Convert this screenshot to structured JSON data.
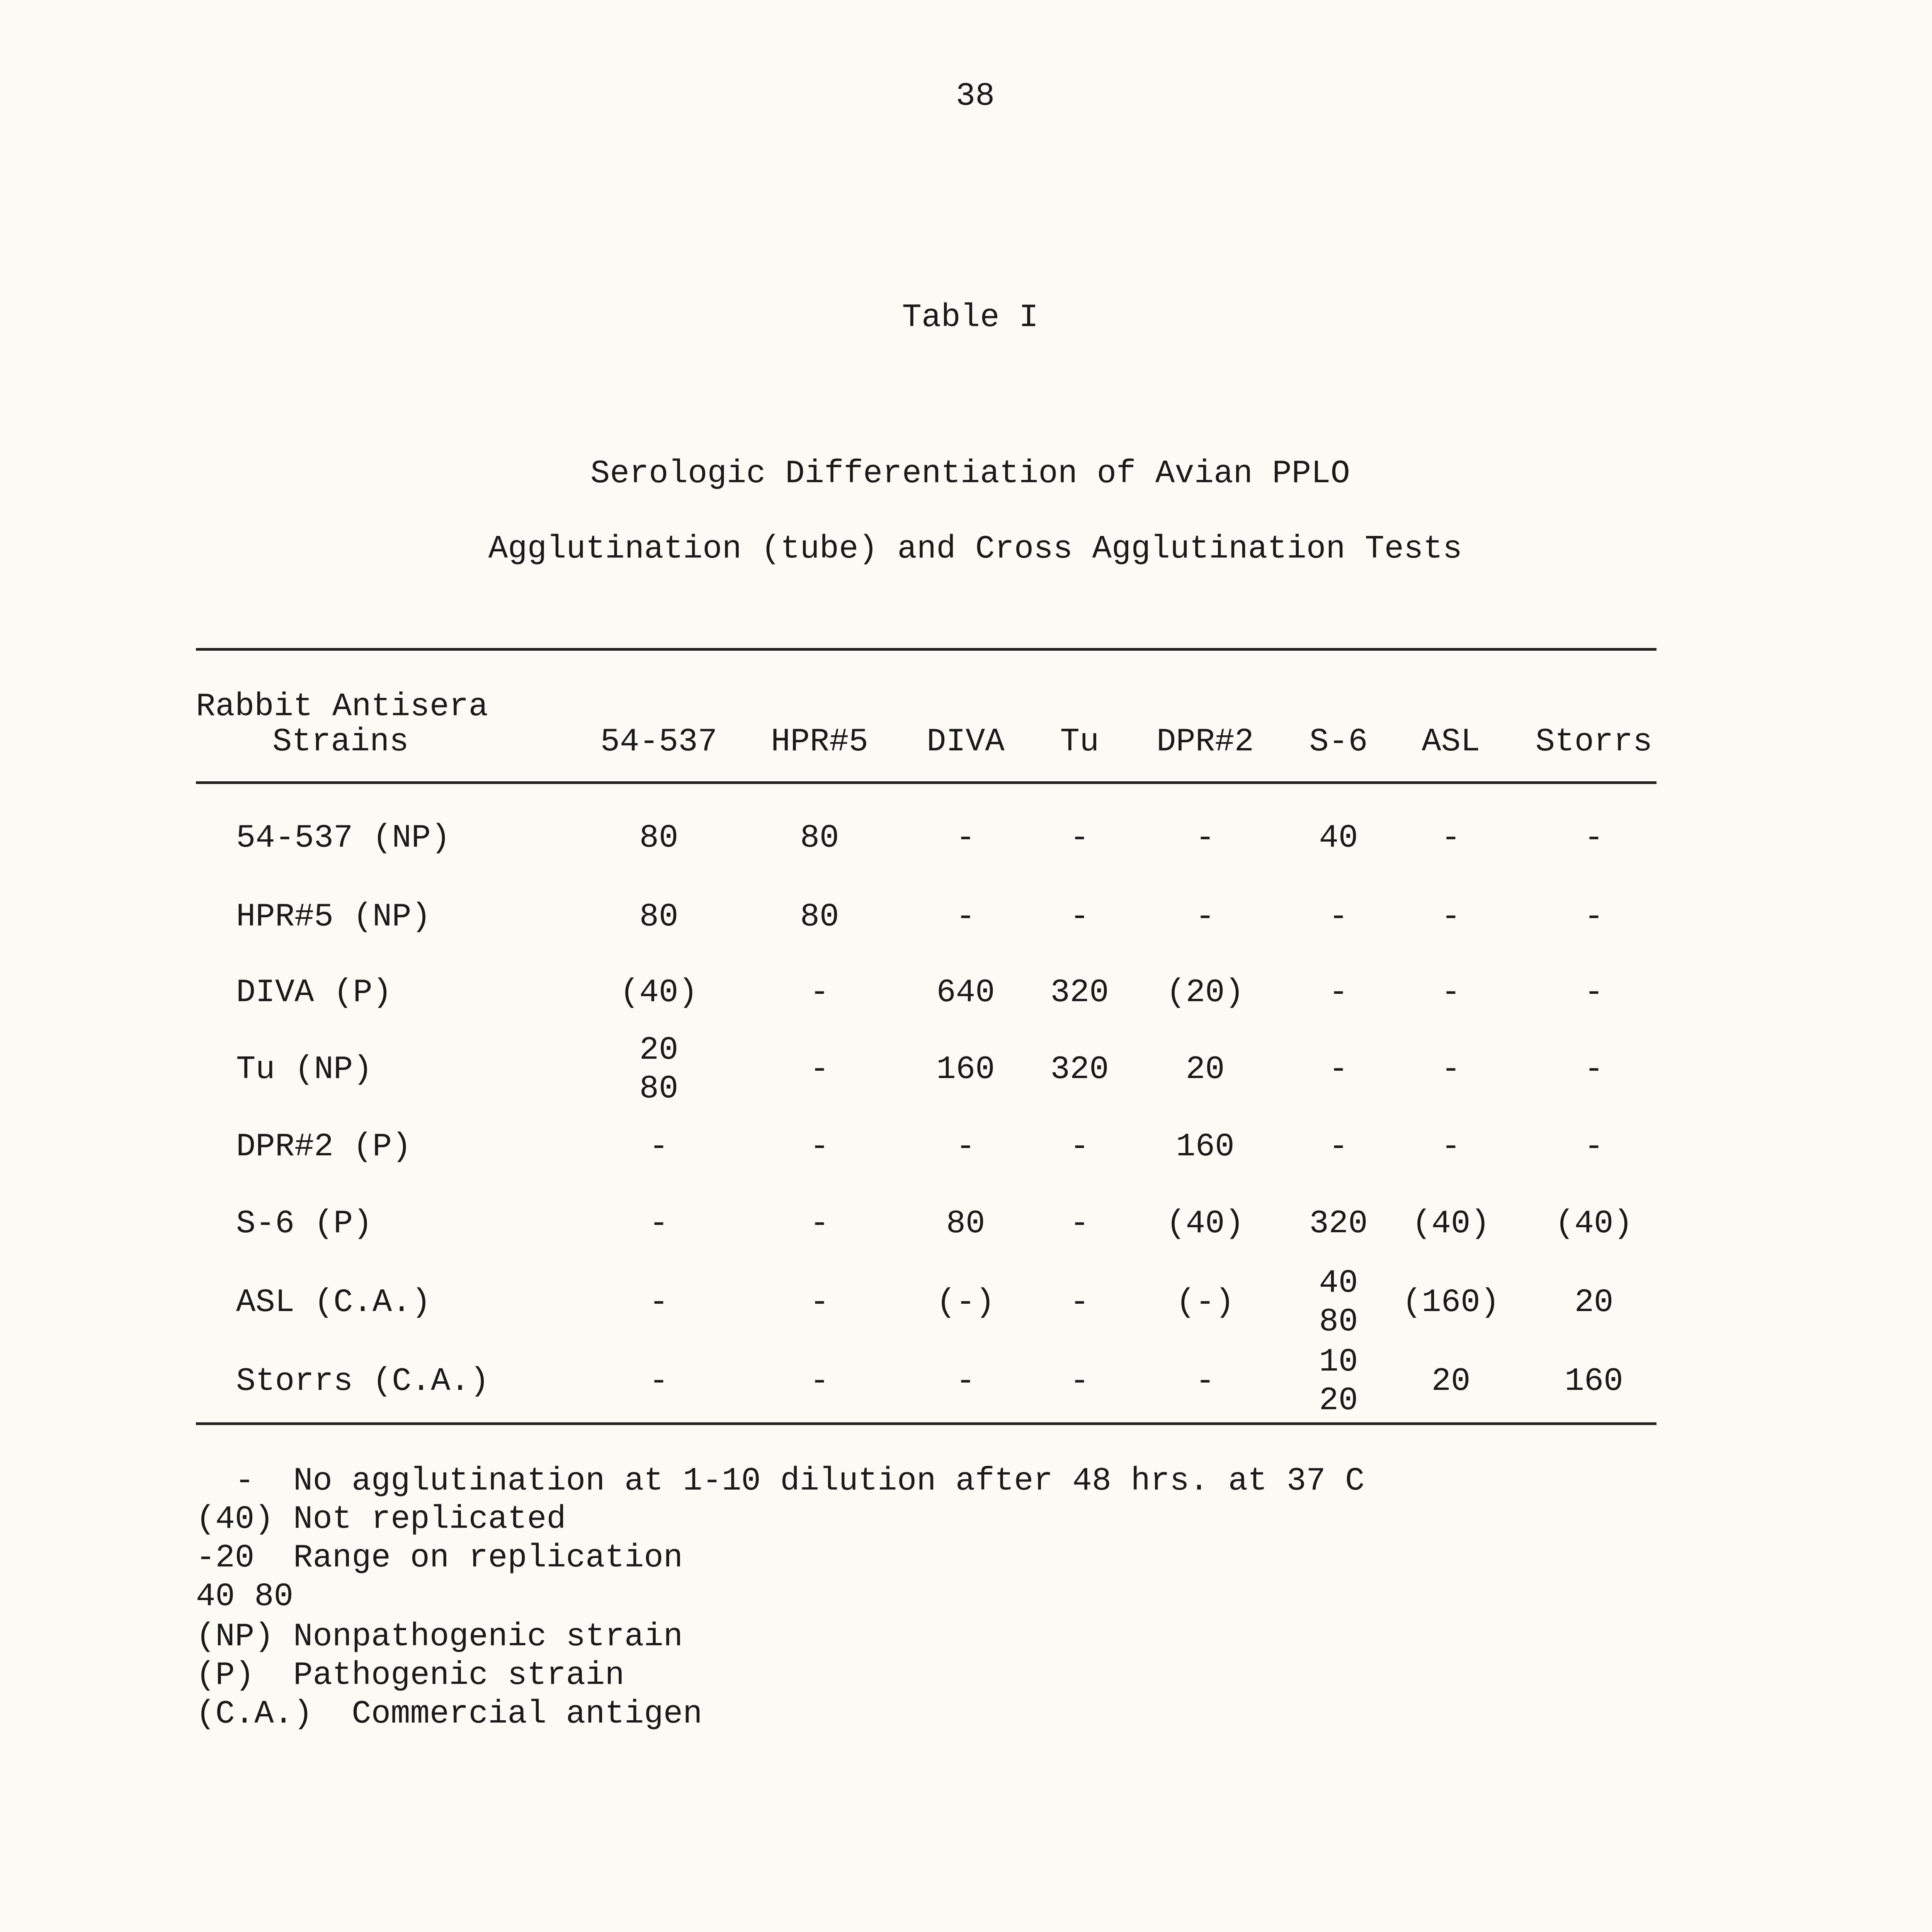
{
  "page_number": "38",
  "table_label": "Table I",
  "title_line1": "Serologic Differentiation of Avian PPLO",
  "title_line2": "Agglutination (tube) and Cross Agglutination Tests",
  "header": {
    "row_header_line1": "Rabbit Antisera",
    "row_header_line2": "Strains",
    "columns": [
      "54-537",
      "HPR#5",
      "DIVA",
      "Tu",
      "DPR#2",
      "S-6",
      "ASL",
      "Storrs"
    ]
  },
  "rows": [
    {
      "label": "54-537 (NP)",
      "cells": [
        "80",
        "80",
        "-",
        "-",
        "-",
        "40",
        "-",
        "-"
      ]
    },
    {
      "label": "HPR#5 (NP)",
      "cells": [
        "80",
        "80",
        "-",
        "-",
        "-",
        "-",
        "-",
        "-"
      ]
    },
    {
      "label": "DIVA (P)",
      "cells": [
        "(40)",
        "-",
        "640",
        "320",
        "(20)",
        "-",
        "-",
        "-"
      ]
    },
    {
      "label": "Tu (NP)",
      "cells": [
        "20\n80",
        "-",
        "160",
        "320",
        "20",
        "-",
        "-",
        "-"
      ]
    },
    {
      "label": "DPR#2 (P)",
      "cells": [
        "-",
        "-",
        "-",
        "-",
        "160",
        "-",
        "-",
        "-"
      ]
    },
    {
      "label": "S-6 (P)",
      "cells": [
        "-",
        "-",
        "80",
        "-",
        "(40)",
        "320",
        "(40)",
        "(40)"
      ]
    },
    {
      "label": "ASL (C.A.)",
      "cells": [
        "-",
        "-",
        "(-)",
        "-",
        "(-)",
        "40\n80",
        "(160)",
        "20"
      ]
    },
    {
      "label": "Storrs (C.A.)",
      "cells": [
        "-",
        "-",
        "-",
        "-",
        "-",
        "10\n20",
        "20",
        "160"
      ]
    }
  ],
  "legend": [
    "  -  No agglutination at 1-10 dilution after 48 hrs. at 37 C",
    "(40) Not replicated",
    "-20  Range on replication",
    "40 80",
    "(NP) Nonpathogenic strain",
    "(P)  Pathogenic strain",
    "(C.A.)  Commercial antigen"
  ]
}
